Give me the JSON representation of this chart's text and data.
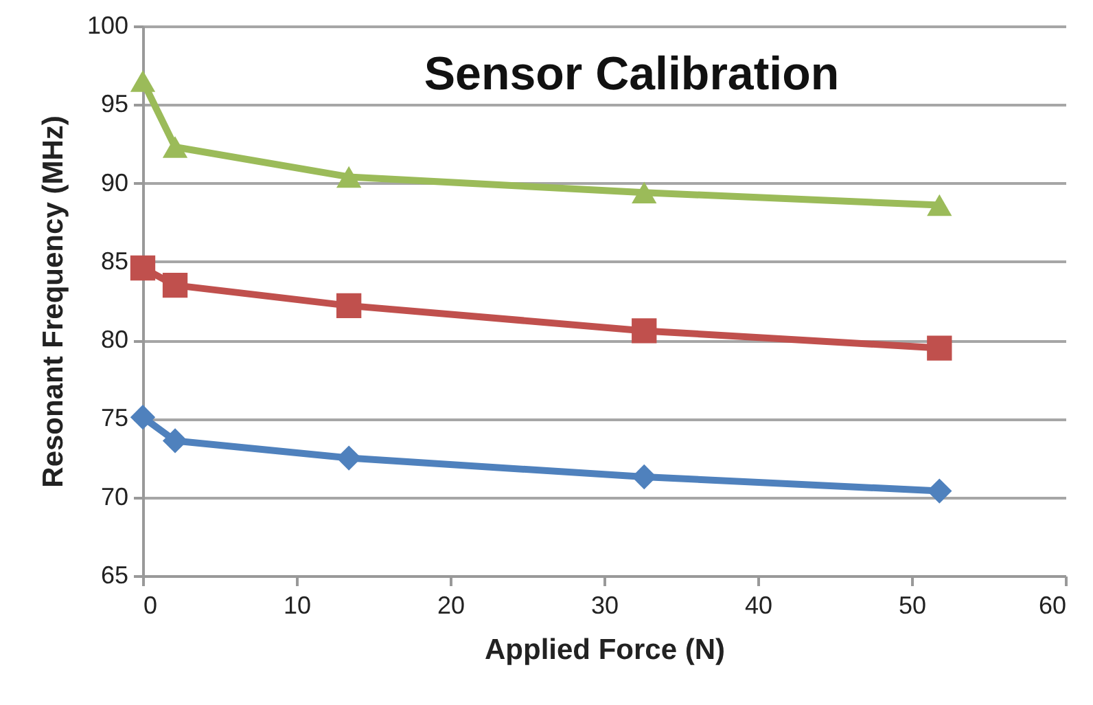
{
  "chart_data": {
    "type": "line",
    "title": "Sensor Calibration",
    "xlabel": "Applied Force (N)",
    "ylabel": "Resonant Frequency (MHz)",
    "x": [
      0,
      2.1,
      13.4,
      32.6,
      51.8
    ],
    "series": [
      {
        "color": "#9bbb59",
        "marker": "triangle",
        "values": [
          96.5,
          92.3,
          90.4,
          89.4,
          88.6
        ]
      },
      {
        "color": "#c0504d",
        "marker": "square",
        "values": [
          84.6,
          83.5,
          82.2,
          80.6,
          79.5
        ]
      },
      {
        "color": "#4f81bd",
        "marker": "diamond",
        "values": [
          75.1,
          73.6,
          72.5,
          71.3,
          70.4
        ]
      }
    ],
    "xlim": [
      0,
      60
    ],
    "xticks": [
      0,
      10,
      20,
      30,
      40,
      50,
      60
    ],
    "ylim": [
      65,
      100
    ],
    "yticks": [
      65,
      70,
      75,
      80,
      85,
      90,
      95,
      100
    ],
    "grid": "y",
    "line_style": "solid"
  }
}
